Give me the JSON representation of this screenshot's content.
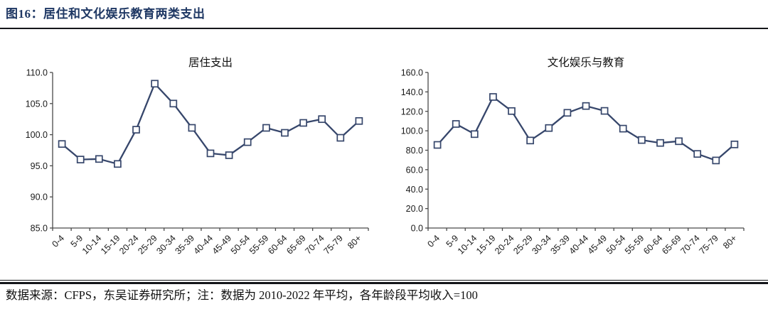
{
  "figure": {
    "title": "图16：居住和文化娱乐教育两类支出",
    "footer": "数据来源：CFPS，东吴证券研究所；注：数据为 2010-2022 年平均，各年龄段平均收入=100"
  },
  "colors": {
    "title_navy": "#1f3864",
    "line": "#36466b",
    "marker_fill": "#ffffff",
    "axis": "#4a4a4a",
    "rule": "#14161a",
    "text": "#111111"
  },
  "chart_data": [
    {
      "type": "line",
      "title": "居住支出",
      "categories": [
        "0-4",
        "5-9",
        "10-14",
        "15-19",
        "20-24",
        "25-29",
        "30-34",
        "35-39",
        "40-44",
        "45-49",
        "50-54",
        "55-59",
        "60-64",
        "65-69",
        "70-74",
        "75-79",
        "80+"
      ],
      "values": [
        98.5,
        96.0,
        96.1,
        95.3,
        100.8,
        108.2,
        105.0,
        101.1,
        97.0,
        96.7,
        98.8,
        101.1,
        100.3,
        101.9,
        102.5,
        99.5,
        102.2
      ],
      "xlabel": "",
      "ylabel": "",
      "ylim": [
        85,
        110
      ],
      "ytick_step": 5,
      "ytick_format_decimals": 1,
      "grid": false,
      "legend": "none",
      "marker": "square"
    },
    {
      "type": "line",
      "title": "文化娱乐与教育",
      "categories": [
        "0-4",
        "5-9",
        "10-14",
        "15-19",
        "20-24",
        "25-29",
        "30-34",
        "35-39",
        "40-44",
        "45-49",
        "50-54",
        "55-59",
        "60-64",
        "65-69",
        "70-74",
        "75-79",
        "80+"
      ],
      "values": [
        85.5,
        107.0,
        96.6,
        134.8,
        120.3,
        90.0,
        102.9,
        118.5,
        125.5,
        120.5,
        102.2,
        90.5,
        87.5,
        89.3,
        76.2,
        69.5,
        86.0
      ],
      "xlabel": "",
      "ylabel": "",
      "ylim": [
        0,
        160
      ],
      "ytick_step": 20,
      "ytick_format_decimals": 1,
      "grid": false,
      "legend": "none",
      "marker": "square"
    }
  ]
}
